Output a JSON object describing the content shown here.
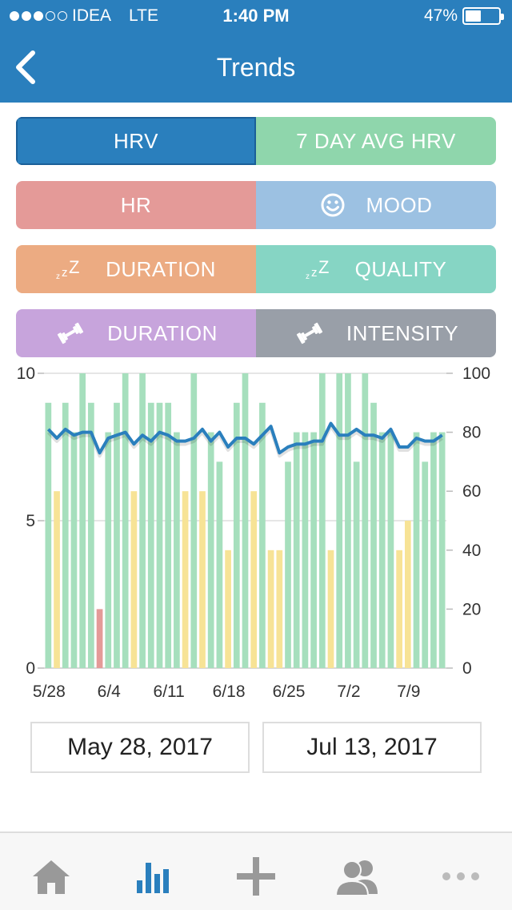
{
  "status_bar": {
    "carrier": "IDEA",
    "network": "LTE",
    "time": "1:40 PM",
    "battery": "47%",
    "battery_level": 0.47
  },
  "nav": {
    "title": "Trends",
    "back_icon": "chevron-left-icon"
  },
  "filters": {
    "hrv": {
      "label": "HRV",
      "color": "#2a7fbd",
      "selected": true
    },
    "avg_hrv": {
      "label": "7 DAY AVG HRV",
      "color": "#8fd6ac"
    },
    "hr": {
      "label": "HR",
      "color": "#e49a98"
    },
    "mood": {
      "label": "MOOD",
      "color": "#9cc1e2",
      "icon": "smiley-icon"
    },
    "sleep_duration": {
      "label": "DURATION",
      "color": "#ecab82",
      "icon": "sleep-zzz-icon"
    },
    "sleep_quality": {
      "label": "QUALITY",
      "color": "#86d5c4",
      "icon": "sleep-zzz-icon"
    },
    "workout_duration": {
      "label": "DURATION",
      "color": "#c7a4dc",
      "icon": "dumbbell-icon"
    },
    "workout_intensity": {
      "label": "INTENSITY",
      "color": "#999fa8",
      "icon": "dumbbell-icon"
    }
  },
  "chart_data": {
    "type": "bar",
    "left_axis": {
      "ylim": [
        0,
        10
      ],
      "ticks": [
        "0",
        "5",
        "10"
      ]
    },
    "right_axis": {
      "ylim": [
        0,
        100
      ],
      "ticks": [
        "0",
        "20",
        "40",
        "60",
        "80",
        "100"
      ]
    },
    "x_ticks": [
      {
        "label": "5/28",
        "index": 0
      },
      {
        "label": "6/4",
        "index": 7
      },
      {
        "label": "6/11",
        "index": 14
      },
      {
        "label": "6/18",
        "index": 21
      },
      {
        "label": "6/25",
        "index": 28
      },
      {
        "label": "7/2",
        "index": 35
      },
      {
        "label": "7/9",
        "index": 42
      }
    ],
    "bars": [
      {
        "v": 9,
        "c": "g"
      },
      {
        "v": 6,
        "c": "y"
      },
      {
        "v": 9,
        "c": "g"
      },
      {
        "v": 8,
        "c": "g"
      },
      {
        "v": 10,
        "c": "g"
      },
      {
        "v": 9,
        "c": "g"
      },
      {
        "v": 2,
        "c": "r"
      },
      {
        "v": 8,
        "c": "g"
      },
      {
        "v": 9,
        "c": "g"
      },
      {
        "v": 10,
        "c": "g"
      },
      {
        "v": 6,
        "c": "y"
      },
      {
        "v": 10,
        "c": "g"
      },
      {
        "v": 9,
        "c": "g"
      },
      {
        "v": 9,
        "c": "g"
      },
      {
        "v": 9,
        "c": "g"
      },
      {
        "v": 8,
        "c": "g"
      },
      {
        "v": 6,
        "c": "y"
      },
      {
        "v": 10,
        "c": "g"
      },
      {
        "v": 6,
        "c": "y"
      },
      {
        "v": 8,
        "c": "g"
      },
      {
        "v": 7,
        "c": "g"
      },
      {
        "v": 4,
        "c": "y"
      },
      {
        "v": 9,
        "c": "g"
      },
      {
        "v": 10,
        "c": "g"
      },
      {
        "v": 6,
        "c": "y"
      },
      {
        "v": 9,
        "c": "g"
      },
      {
        "v": 4,
        "c": "y"
      },
      {
        "v": 4,
        "c": "y"
      },
      {
        "v": 7,
        "c": "g"
      },
      {
        "v": 8,
        "c": "g"
      },
      {
        "v": 8,
        "c": "g"
      },
      {
        "v": 8,
        "c": "g"
      },
      {
        "v": 10,
        "c": "g"
      },
      {
        "v": 4,
        "c": "y"
      },
      {
        "v": 10,
        "c": "g"
      },
      {
        "v": 10,
        "c": "g"
      },
      {
        "v": 7,
        "c": "g"
      },
      {
        "v": 10,
        "c": "g"
      },
      {
        "v": 9,
        "c": "g"
      },
      {
        "v": 8,
        "c": "g"
      },
      {
        "v": 8,
        "c": "g"
      },
      {
        "v": 4,
        "c": "y"
      },
      {
        "v": 5,
        "c": "y"
      },
      {
        "v": 8,
        "c": "g"
      },
      {
        "v": 7,
        "c": "g"
      },
      {
        "v": 8,
        "c": "g"
      },
      {
        "v": 8,
        "c": "g"
      }
    ],
    "bar_colors": {
      "g": "#a6dfbd",
      "y": "#f7e396",
      "r": "#e49a98"
    },
    "line": {
      "name": "HRV",
      "color": "#2a7fbd",
      "values": [
        81,
        78,
        81,
        79,
        80,
        80,
        73,
        78,
        79,
        80,
        76,
        79,
        77,
        80,
        79,
        77,
        77,
        78,
        81,
        77,
        80,
        75,
        78,
        78,
        76,
        79,
        82,
        73,
        75,
        76,
        76,
        77,
        77,
        83,
        79,
        79,
        81,
        79,
        79,
        78,
        81,
        75,
        75,
        78,
        77,
        77,
        79
      ]
    }
  },
  "date_range": {
    "start": "May 28, 2017",
    "end": "Jul 13, 2017"
  },
  "tabs": [
    {
      "name": "home-icon",
      "color": "#999999"
    },
    {
      "name": "trends-chart-icon",
      "color": "#2a7fbd"
    },
    {
      "name": "add-icon",
      "color": "#999999"
    },
    {
      "name": "people-icon",
      "color": "#999999"
    },
    {
      "name": "more-icon",
      "color": "#999999"
    }
  ]
}
